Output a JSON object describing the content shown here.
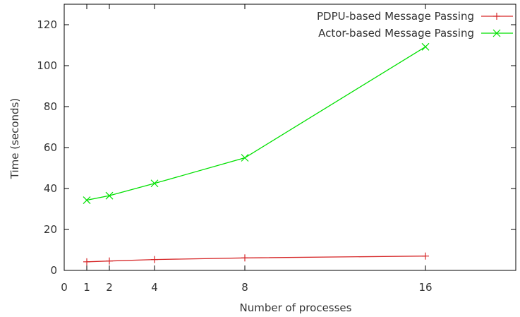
{
  "chart_data": {
    "type": "line",
    "title": "",
    "xlabel": "Number of processes",
    "ylabel": "Time (seconds)",
    "xlim": [
      0,
      20
    ],
    "ylim": [
      0,
      130
    ],
    "x_ticks": [
      0,
      1,
      2,
      4,
      8,
      16
    ],
    "y_ticks": [
      0,
      20,
      40,
      60,
      80,
      100,
      120
    ],
    "grid": false,
    "legend_position": "top-right",
    "series": [
      {
        "name": "PDPU-based Message Passing",
        "color": "#d62728",
        "marker": "plus",
        "x": [
          1,
          2,
          4,
          8,
          16
        ],
        "y": [
          4.2,
          4.6,
          5.3,
          6.1,
          7.0
        ]
      },
      {
        "name": "Actor-based Message Passing",
        "color": "#00e000",
        "marker": "cross",
        "x": [
          1,
          2,
          4,
          8,
          16
        ],
        "y": [
          34.3,
          36.5,
          42.5,
          55.0,
          109.2
        ]
      }
    ]
  }
}
